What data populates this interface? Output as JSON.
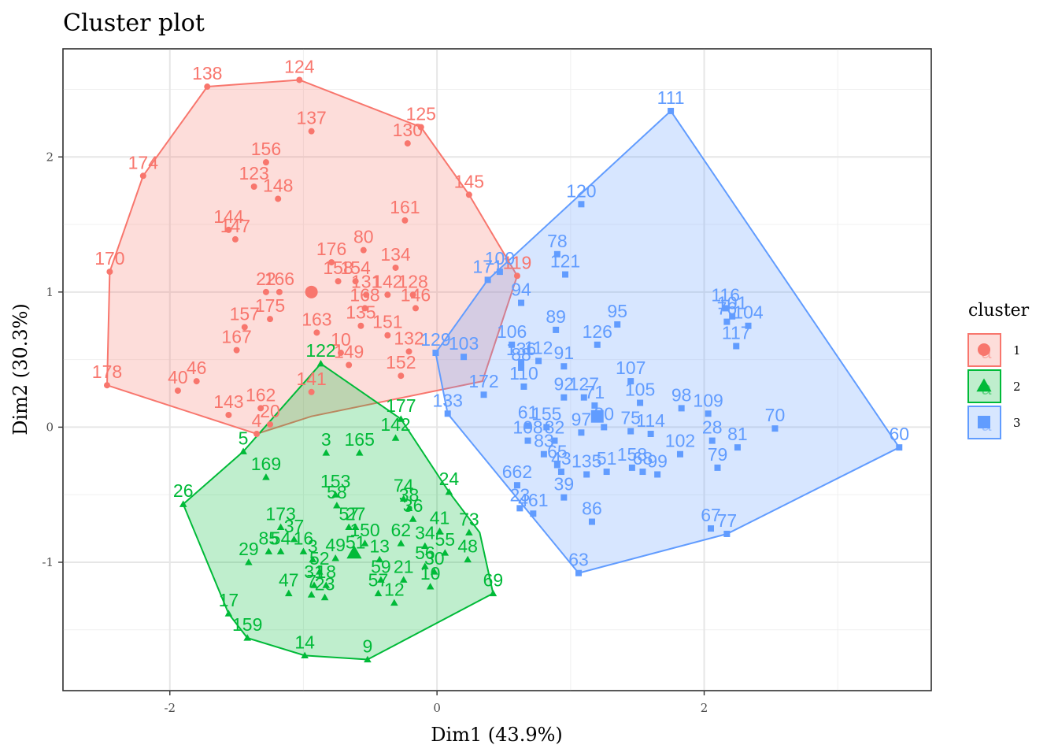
{
  "chart_data": {
    "type": "scatter",
    "title": "Cluster plot",
    "xlabel": "Dim1 (43.9%)",
    "ylabel": "Dim2 (30.3%)",
    "xlim": [
      -2.8,
      3.7
    ],
    "ylim": [
      -1.95,
      2.8
    ],
    "x_ticks": [
      -2,
      0,
      2
    ],
    "y_ticks": [
      -1,
      0,
      1,
      2
    ],
    "grid": true,
    "legend": {
      "title": "cluster",
      "position": "right",
      "entries": [
        "1",
        "2",
        "3"
      ]
    },
    "series": [
      {
        "name": "1",
        "color": "#F8766D",
        "shape": "circle",
        "hull": [
          [
            -1.72,
            2.52
          ],
          [
            -1.03,
            2.57
          ],
          [
            -0.12,
            2.22
          ],
          [
            0.24,
            1.72
          ],
          [
            0.6,
            1.12
          ],
          [
            0.34,
            0.34
          ],
          [
            -0.94,
            0.08
          ],
          [
            -1.35,
            -0.05
          ],
          [
            -2.47,
            0.31
          ],
          [
            -2.45,
            1.15
          ],
          [
            -2.2,
            1.86
          ]
        ],
        "center": {
          "x": -0.94,
          "y": 1.0
        },
        "points": [
          {
            "label": "138",
            "x": -1.72,
            "y": 2.52
          },
          {
            "label": "124",
            "x": -1.03,
            "y": 2.57
          },
          {
            "label": "137",
            "x": -0.94,
            "y": 2.19
          },
          {
            "label": "125",
            "x": -0.12,
            "y": 2.22
          },
          {
            "label": "130",
            "x": -0.22,
            "y": 2.1
          },
          {
            "label": "145",
            "x": 0.24,
            "y": 1.72
          },
          {
            "label": "174",
            "x": -2.2,
            "y": 1.86
          },
          {
            "label": "156",
            "x": -1.28,
            "y": 1.96
          },
          {
            "label": "123",
            "x": -1.37,
            "y": 1.78
          },
          {
            "label": "148",
            "x": -1.19,
            "y": 1.69
          },
          {
            "label": "161",
            "x": -0.24,
            "y": 1.53
          },
          {
            "label": "144",
            "x": -1.56,
            "y": 1.46
          },
          {
            "label": "147",
            "x": -1.51,
            "y": 1.39
          },
          {
            "label": "170",
            "x": -2.45,
            "y": 1.15
          },
          {
            "label": "176",
            "x": -0.79,
            "y": 1.22
          },
          {
            "label": "80",
            "x": -0.55,
            "y": 1.31
          },
          {
            "label": "134",
            "x": -0.31,
            "y": 1.18
          },
          {
            "label": "119",
            "x": 0.6,
            "y": 1.12
          },
          {
            "label": "22",
            "x": -1.28,
            "y": 1.0
          },
          {
            "label": "166",
            "x": -1.18,
            "y": 1.0
          },
          {
            "label": "158",
            "x": -0.74,
            "y": 1.08
          },
          {
            "label": "154",
            "x": -0.61,
            "y": 1.08
          },
          {
            "label": "131",
            "x": -0.53,
            "y": 0.98
          },
          {
            "label": "142",
            "x": -0.37,
            "y": 0.98
          },
          {
            "label": "128",
            "x": -0.18,
            "y": 0.98
          },
          {
            "label": "146",
            "x": -0.16,
            "y": 0.88
          },
          {
            "label": "175",
            "x": -1.25,
            "y": 0.8
          },
          {
            "label": "163",
            "x": -0.9,
            "y": 0.7
          },
          {
            "label": "168",
            "x": -0.54,
            "y": 0.88
          },
          {
            "label": "157",
            "x": -1.44,
            "y": 0.74
          },
          {
            "label": "167",
            "x": -1.5,
            "y": 0.57
          },
          {
            "label": "135",
            "x": -0.57,
            "y": 0.75
          },
          {
            "label": "151",
            "x": -0.37,
            "y": 0.68
          },
          {
            "label": "132",
            "x": -0.21,
            "y": 0.56
          },
          {
            "label": "10",
            "x": -0.72,
            "y": 0.55
          },
          {
            "label": "149",
            "x": -0.66,
            "y": 0.46
          },
          {
            "label": "152",
            "x": -0.27,
            "y": 0.38
          },
          {
            "label": "178",
            "x": -2.47,
            "y": 0.31
          },
          {
            "label": "40",
            "x": -1.94,
            "y": 0.27
          },
          {
            "label": "46",
            "x": -1.8,
            "y": 0.34
          },
          {
            "label": "141",
            "x": -0.94,
            "y": 0.26
          },
          {
            "label": "143",
            "x": -1.56,
            "y": 0.09
          },
          {
            "label": "162",
            "x": -1.32,
            "y": 0.14
          },
          {
            "label": "4",
            "x": -1.35,
            "y": -0.05
          },
          {
            "label": "20",
            "x": -1.25,
            "y": 0.02
          }
        ]
      },
      {
        "name": "2",
        "color": "#00BA38",
        "shape": "triangle",
        "hull": [
          [
            -0.87,
            0.47
          ],
          [
            -0.27,
            0.06
          ],
          [
            0.09,
            -0.48
          ],
          [
            0.32,
            -0.78
          ],
          [
            0.42,
            -1.23
          ],
          [
            -0.52,
            -1.72
          ],
          [
            -0.99,
            -1.69
          ],
          [
            -1.42,
            -1.56
          ],
          [
            -1.56,
            -1.38
          ],
          [
            -1.9,
            -0.57
          ],
          [
            -1.45,
            -0.18
          ]
        ],
        "center": {
          "x": -0.62,
          "y": -0.93
        },
        "points": [
          {
            "label": "122",
            "x": -0.87,
            "y": 0.47
          },
          {
            "label": "177",
            "x": -0.27,
            "y": 0.06
          },
          {
            "label": "142",
            "x": -0.31,
            "y": -0.08
          },
          {
            "label": "5",
            "x": -1.45,
            "y": -0.18
          },
          {
            "label": "3",
            "x": -0.83,
            "y": -0.19
          },
          {
            "label": "165",
            "x": -0.58,
            "y": -0.19
          },
          {
            "label": "169",
            "x": -1.28,
            "y": -0.37
          },
          {
            "label": "26",
            "x": -1.9,
            "y": -0.57
          },
          {
            "label": "24",
            "x": 0.09,
            "y": -0.48
          },
          {
            "label": "153",
            "x": -0.76,
            "y": -0.5
          },
          {
            "label": "58",
            "x": -0.75,
            "y": -0.58
          },
          {
            "label": "74",
            "x": -0.25,
            "y": -0.53
          },
          {
            "label": "38",
            "x": -0.21,
            "y": -0.6
          },
          {
            "label": "36",
            "x": -0.18,
            "y": -0.68
          },
          {
            "label": "173",
            "x": -1.17,
            "y": -0.74
          },
          {
            "label": "57",
            "x": -0.66,
            "y": -0.74
          },
          {
            "label": "27",
            "x": -0.61,
            "y": -0.74
          },
          {
            "label": "41",
            "x": 0.02,
            "y": -0.77
          },
          {
            "label": "73",
            "x": 0.24,
            "y": -0.78
          },
          {
            "label": "37",
            "x": -1.07,
            "y": -0.83
          },
          {
            "label": "150",
            "x": -0.54,
            "y": -0.86
          },
          {
            "label": "62",
            "x": -0.27,
            "y": -0.86
          },
          {
            "label": "34",
            "x": -0.09,
            "y": -0.88
          },
          {
            "label": "85",
            "x": -1.26,
            "y": -0.92
          },
          {
            "label": "54",
            "x": -1.17,
            "y": -0.92
          },
          {
            "label": "16",
            "x": -1.0,
            "y": -0.92
          },
          {
            "label": "3",
            "x": -0.93,
            "y": -0.98
          },
          {
            "label": "49",
            "x": -0.76,
            "y": -0.97
          },
          {
            "label": "13",
            "x": -0.43,
            "y": -0.98
          },
          {
            "label": "55",
            "x": 0.06,
            "y": -0.93
          },
          {
            "label": "48",
            "x": 0.23,
            "y": -0.98
          },
          {
            "label": "51",
            "x": -0.61,
            "y": -0.95
          },
          {
            "label": "56",
            "x": -0.09,
            "y": -1.03
          },
          {
            "label": "30",
            "x": -0.02,
            "y": -1.07
          },
          {
            "label": "29",
            "x": -1.41,
            "y": -1.0
          },
          {
            "label": "52",
            "x": -0.88,
            "y": -1.07
          },
          {
            "label": "59",
            "x": -0.42,
            "y": -1.13
          },
          {
            "label": "21",
            "x": -0.25,
            "y": -1.13
          },
          {
            "label": "69",
            "x": 0.42,
            "y": -1.23
          },
          {
            "label": "31",
            "x": -0.92,
            "y": -1.17
          },
          {
            "label": "18",
            "x": -0.83,
            "y": -1.17
          },
          {
            "label": "10",
            "x": -0.05,
            "y": -1.18
          },
          {
            "label": "47",
            "x": -1.11,
            "y": -1.23
          },
          {
            "label": "7",
            "x": -0.94,
            "y": -1.24
          },
          {
            "label": "23",
            "x": -0.84,
            "y": -1.26
          },
          {
            "label": "57",
            "x": -0.44,
            "y": -1.23
          },
          {
            "label": "12",
            "x": -0.32,
            "y": -1.3
          },
          {
            "label": "17",
            "x": -1.56,
            "y": -1.38
          },
          {
            "label": "159",
            "x": -1.42,
            "y": -1.56
          },
          {
            "label": "14",
            "x": -0.99,
            "y": -1.69
          },
          {
            "label": "9",
            "x": -0.52,
            "y": -1.72
          }
        ]
      },
      {
        "name": "3",
        "color": "#619CFF",
        "shape": "square",
        "hull": [
          [
            1.75,
            2.34
          ],
          [
            3.46,
            -0.15
          ],
          [
            2.17,
            -0.79
          ],
          [
            1.06,
            -1.08
          ],
          [
            0.08,
            0.1
          ],
          [
            -0.01,
            0.55
          ],
          [
            0.38,
            1.09
          ]
        ],
        "center": {
          "x": 1.2,
          "y": 0.08
        },
        "points": [
          {
            "label": "111",
            "x": 1.75,
            "y": 2.34
          },
          {
            "label": "120",
            "x": 1.08,
            "y": 1.65
          },
          {
            "label": "78",
            "x": 0.9,
            "y": 1.28
          },
          {
            "label": "121",
            "x": 0.96,
            "y": 1.13
          },
          {
            "label": "171",
            "x": 0.38,
            "y": 1.09
          },
          {
            "label": "100",
            "x": 0.47,
            "y": 1.15
          },
          {
            "label": "94",
            "x": 0.63,
            "y": 0.92
          },
          {
            "label": "116",
            "x": 2.16,
            "y": 0.88
          },
          {
            "label": "76",
            "x": 2.17,
            "y": 0.78
          },
          {
            "label": "101",
            "x": 2.21,
            "y": 0.82
          },
          {
            "label": "104",
            "x": 2.33,
            "y": 0.75
          },
          {
            "label": "89",
            "x": 0.89,
            "y": 0.72
          },
          {
            "label": "95",
            "x": 1.35,
            "y": 0.76
          },
          {
            "label": "126",
            "x": 1.2,
            "y": 0.61
          },
          {
            "label": "117",
            "x": 2.24,
            "y": 0.6
          },
          {
            "label": "106",
            "x": 0.56,
            "y": 0.61
          },
          {
            "label": "112",
            "x": 0.76,
            "y": 0.49
          },
          {
            "label": "136",
            "x": 0.63,
            "y": 0.48
          },
          {
            "label": "88",
            "x": 0.63,
            "y": 0.44
          },
          {
            "label": "129",
            "x": -0.01,
            "y": 0.55
          },
          {
            "label": "103",
            "x": 0.2,
            "y": 0.52
          },
          {
            "label": "91",
            "x": 0.95,
            "y": 0.45
          },
          {
            "label": "172",
            "x": 0.35,
            "y": 0.24
          },
          {
            "label": "110",
            "x": 0.65,
            "y": 0.3
          },
          {
            "label": "107",
            "x": 1.45,
            "y": 0.34
          },
          {
            "label": "133",
            "x": 0.08,
            "y": 0.1
          },
          {
            "label": "92",
            "x": 0.95,
            "y": 0.22
          },
          {
            "label": "127",
            "x": 1.1,
            "y": 0.22
          },
          {
            "label": "71",
            "x": 1.18,
            "y": 0.16
          },
          {
            "label": "105",
            "x": 1.52,
            "y": 0.18
          },
          {
            "label": "98",
            "x": 1.83,
            "y": 0.14
          },
          {
            "label": "109",
            "x": 2.03,
            "y": 0.1
          },
          {
            "label": "70",
            "x": 2.53,
            "y": -0.01
          },
          {
            "label": "81",
            "x": 2.25,
            "y": -0.15
          },
          {
            "label": "28",
            "x": 2.06,
            "y": -0.1
          },
          {
            "label": "60",
            "x": 3.46,
            "y": -0.15
          },
          {
            "label": "79",
            "x": 2.1,
            "y": -0.3
          },
          {
            "label": "102",
            "x": 1.82,
            "y": -0.2
          },
          {
            "label": "114",
            "x": 1.6,
            "y": -0.05
          },
          {
            "label": "75",
            "x": 1.45,
            "y": -0.03
          },
          {
            "label": "80",
            "x": 1.25,
            "y": 0.0
          },
          {
            "label": "97",
            "x": 1.08,
            "y": -0.04
          },
          {
            "label": "61",
            "x": 0.68,
            "y": 0.01
          },
          {
            "label": "155",
            "x": 0.82,
            "y": 0.0
          },
          {
            "label": "82",
            "x": 0.88,
            "y": -0.1
          },
          {
            "label": "108",
            "x": 0.68,
            "y": -0.1
          },
          {
            "label": "83",
            "x": 0.8,
            "y": -0.2
          },
          {
            "label": "65",
            "x": 0.9,
            "y": -0.28
          },
          {
            "label": "43",
            "x": 0.93,
            "y": -0.33
          },
          {
            "label": "135",
            "x": 1.12,
            "y": -0.35
          },
          {
            "label": "51",
            "x": 1.27,
            "y": -0.33
          },
          {
            "label": "158",
            "x": 1.46,
            "y": -0.3
          },
          {
            "label": "68",
            "x": 1.54,
            "y": -0.33
          },
          {
            "label": "99",
            "x": 1.65,
            "y": -0.35
          },
          {
            "label": "662",
            "x": 0.6,
            "y": -0.43
          },
          {
            "label": "39",
            "x": 0.95,
            "y": -0.52
          },
          {
            "label": "23",
            "x": 0.62,
            "y": -0.6
          },
          {
            "label": "461",
            "x": 0.72,
            "y": -0.64
          },
          {
            "label": "86",
            "x": 1.16,
            "y": -0.7
          },
          {
            "label": "67",
            "x": 2.05,
            "y": -0.75
          },
          {
            "label": "77",
            "x": 2.17,
            "y": -0.79
          },
          {
            "label": "63",
            "x": 1.06,
            "y": -1.08
          }
        ]
      }
    ]
  }
}
